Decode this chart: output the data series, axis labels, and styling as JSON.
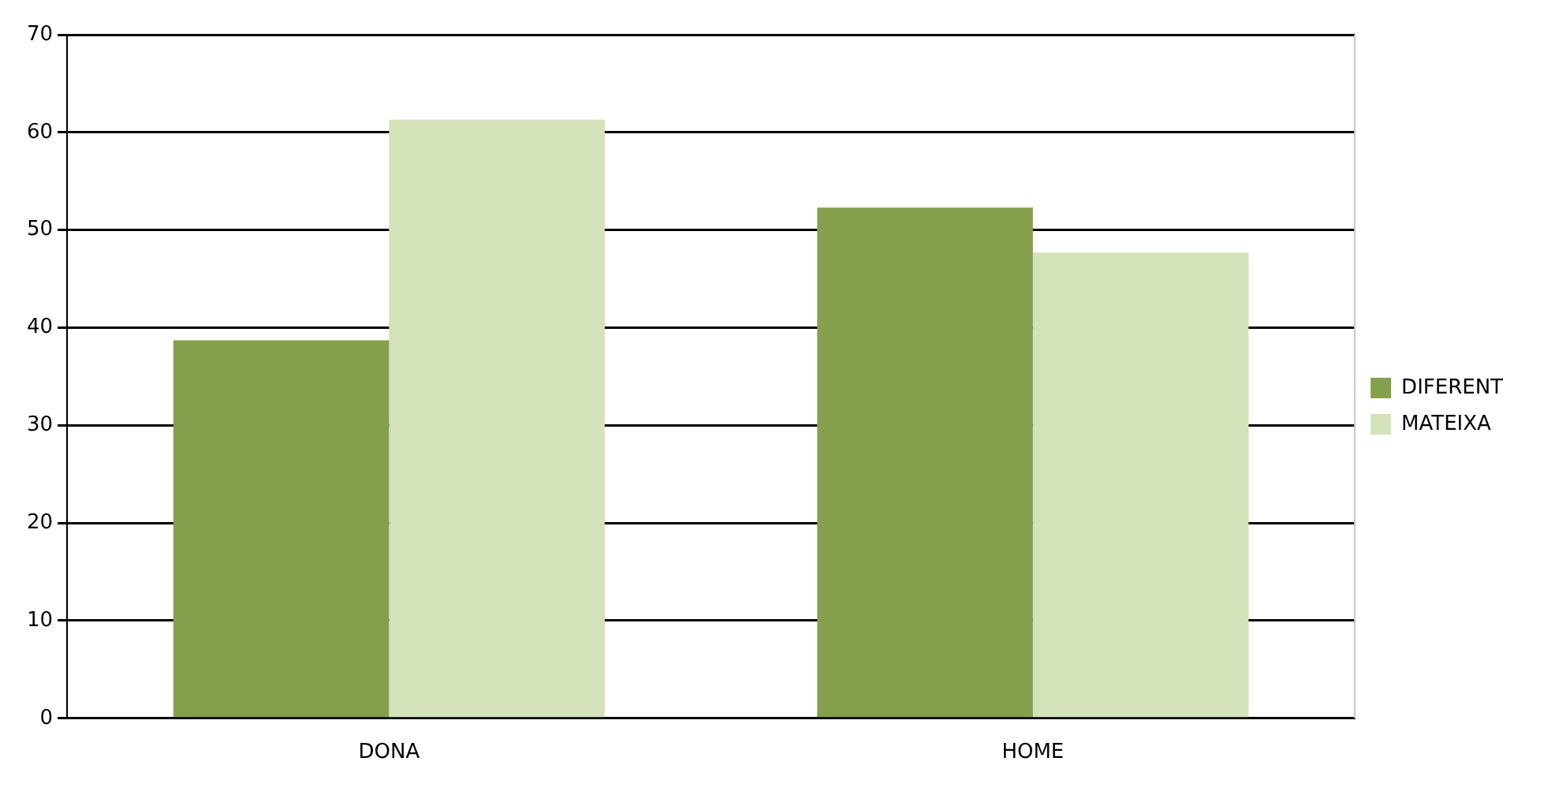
{
  "chart_data": {
    "type": "bar",
    "categories": [
      "DONA",
      "HOME"
    ],
    "series": [
      {
        "name": "DIFERENT",
        "color": "#84a04c",
        "values": [
          38.7,
          52.3
        ]
      },
      {
        "name": "MATEIXA",
        "color": "#d4e2b9",
        "values": [
          61.3,
          47.7
        ]
      }
    ],
    "ylim": [
      0,
      70
    ],
    "yticks": [
      0,
      10,
      20,
      30,
      40,
      50,
      60,
      70
    ],
    "grid": "y",
    "legend": "right"
  }
}
